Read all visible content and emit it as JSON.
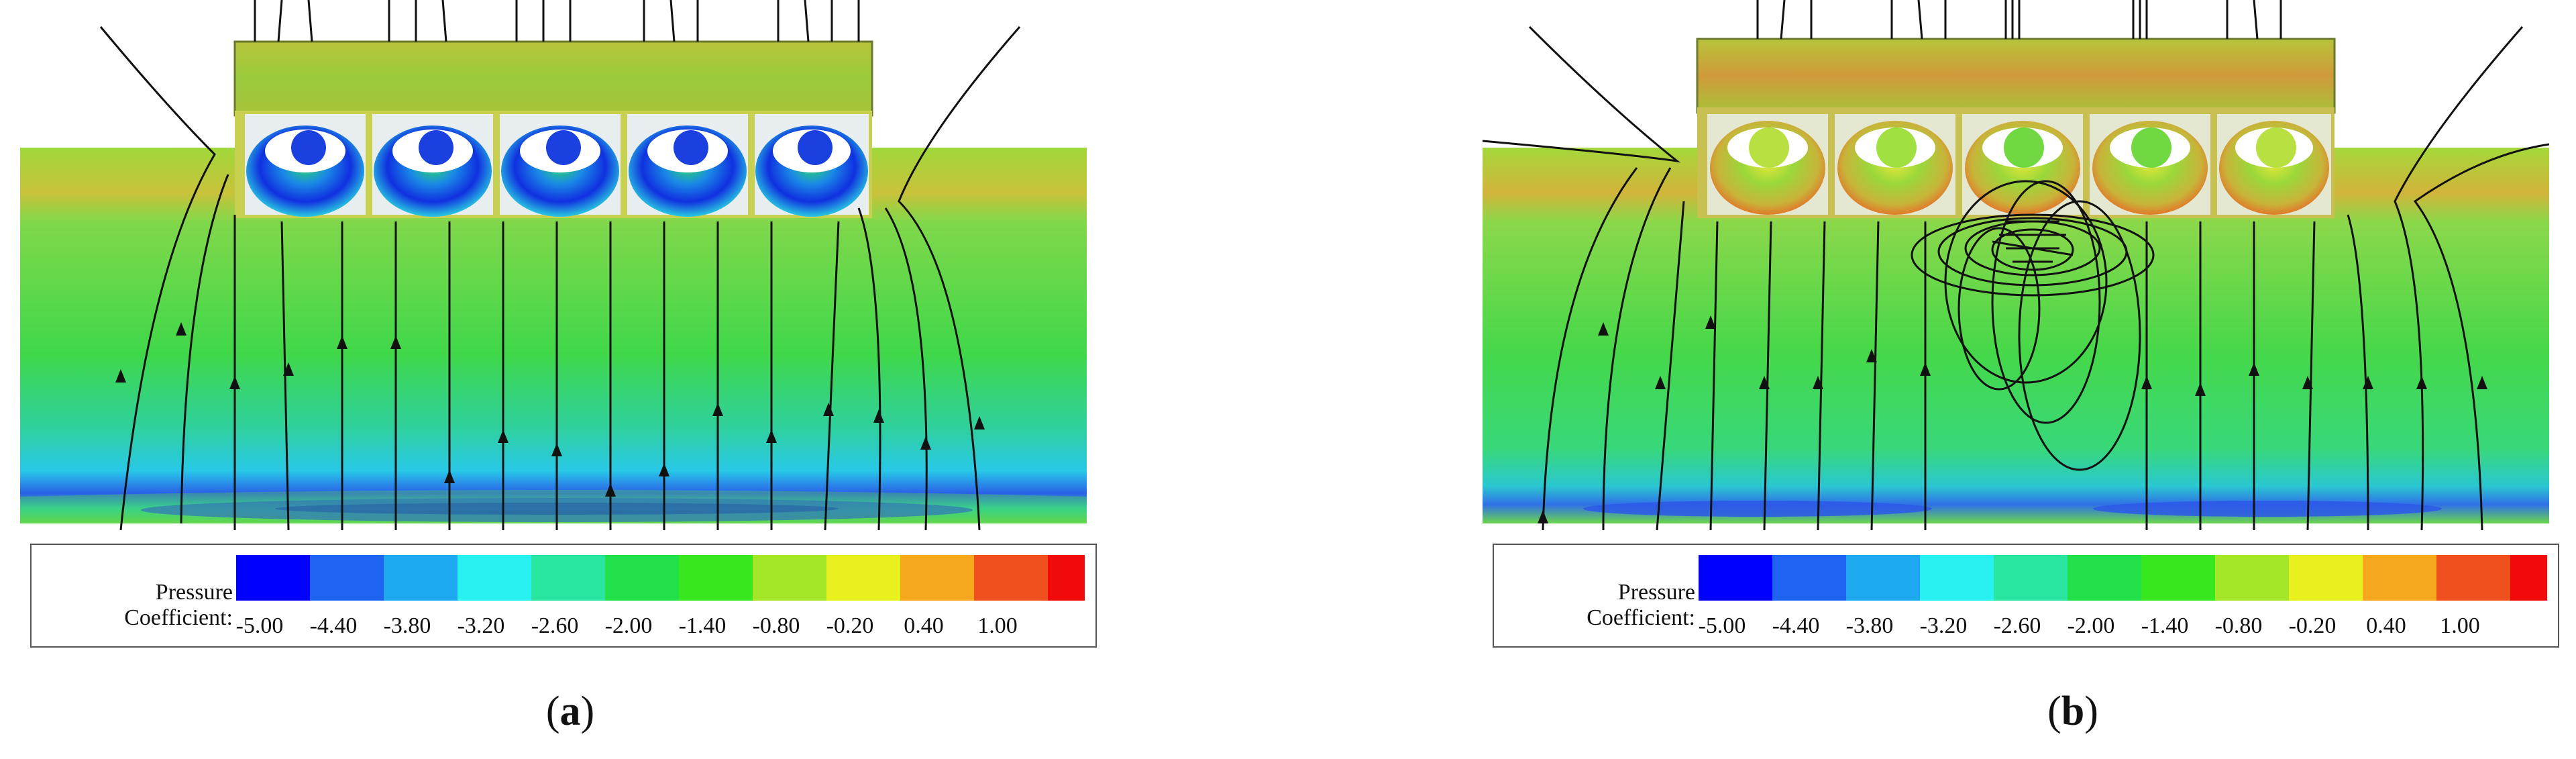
{
  "panels": [
    {
      "id": "a",
      "caption_label": "a",
      "legend": {
        "title_line1": "Pressure",
        "title_line2": "Coefficient:",
        "ticks": [
          "-5.00",
          "-4.40",
          "-3.80",
          "-3.20",
          "-2.60",
          "-2.00",
          "-1.40",
          "-0.80",
          "-0.20",
          "0.40",
          "1.00"
        ],
        "colors": [
          "#0000ff",
          "#1e64f0",
          "#1ea8f0",
          "#28f0f0",
          "#28e6a0",
          "#22e04a",
          "#38e81e",
          "#a4e628",
          "#e8f01e",
          "#f5a81e",
          "#f0501e",
          "#f00a0a"
        ]
      }
    },
    {
      "id": "b",
      "caption_label": "b",
      "legend": {
        "title_line1": "Pressure",
        "title_line2": "Coefficient:",
        "ticks": [
          "-5.00",
          "-4.40",
          "-3.80",
          "-3.20",
          "-2.60",
          "-2.00",
          "-1.40",
          "-0.80",
          "-0.20",
          "0.40",
          "1.00"
        ],
        "colors": [
          "#0000ff",
          "#1e64f0",
          "#1ea8f0",
          "#28f0f0",
          "#28e6a0",
          "#22e04a",
          "#38e81e",
          "#a4e628",
          "#e8f01e",
          "#f5a81e",
          "#f0501e",
          "#f00a0a"
        ]
      }
    }
  ]
}
